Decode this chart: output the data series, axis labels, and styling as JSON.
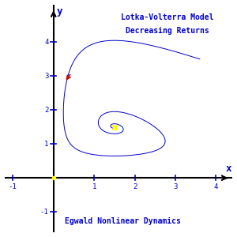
{
  "title_line1": "Lotka-Volterra Model",
  "title_line2": "Decreasing Returns",
  "subtitle": "Egwald Nonlinear Dynamics",
  "bg_color": "#ffffff",
  "line_color": "#0000cc",
  "axis_color": "#000000",
  "tick_color": "#0000cc",
  "text_color": "#0000cc",
  "arrow_color": "#cc0000",
  "eq_color": "#ffff00",
  "xlim": [
    -1.2,
    4.4
  ],
  "ylim": [
    -1.6,
    5.1
  ],
  "xlabel": "x",
  "ylabel": "y"
}
